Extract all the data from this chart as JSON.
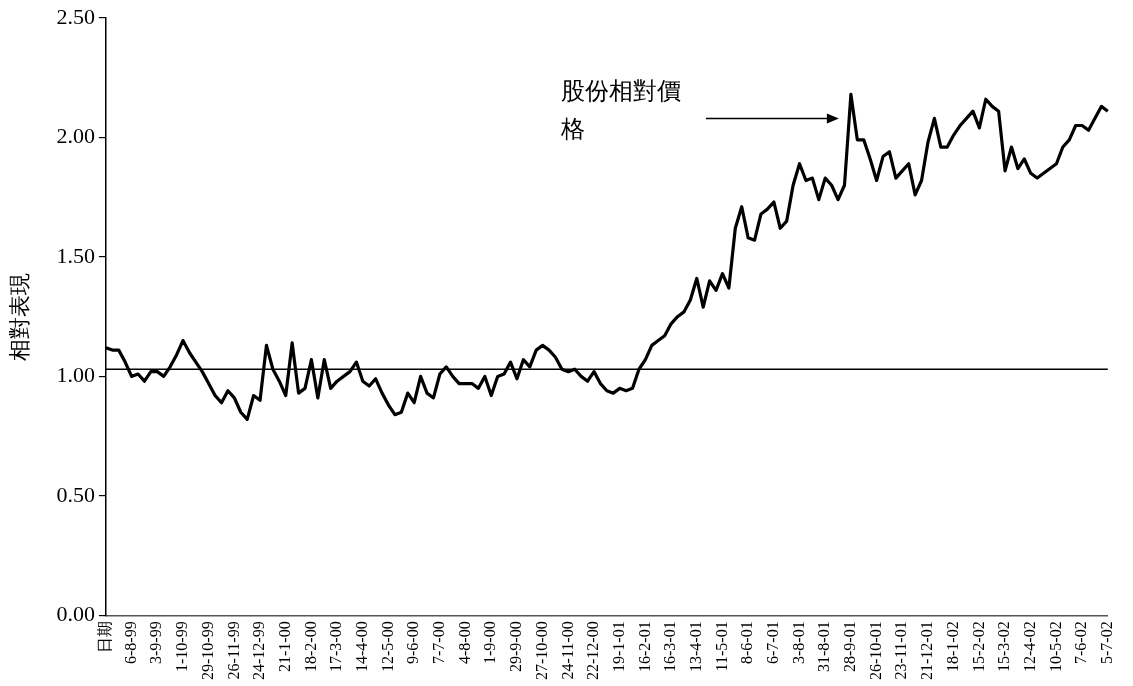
{
  "chart_data": {
    "type": "line",
    "ylabel": "相對表現",
    "categories": [
      "日期",
      null,
      null,
      null,
      "6-8-99",
      null,
      null,
      null,
      "3-9-99",
      null,
      null,
      null,
      "1-10-99",
      null,
      null,
      null,
      "29-10-99",
      null,
      null,
      null,
      "26-11-99",
      null,
      null,
      null,
      "24-12-99",
      null,
      null,
      null,
      "21-1-00",
      null,
      null,
      null,
      "18-2-00",
      null,
      null,
      null,
      "17-3-00",
      null,
      null,
      null,
      "14-4-00",
      null,
      null,
      null,
      "12-5-00",
      null,
      null,
      null,
      "9-6-00",
      null,
      null,
      null,
      "7-7-00",
      null,
      null,
      null,
      "4-8-00",
      null,
      null,
      null,
      "1-9-00",
      null,
      null,
      null,
      "29-9-00",
      null,
      null,
      null,
      "27-10-00",
      null,
      null,
      null,
      "24-11-00",
      null,
      null,
      null,
      "22-12-00",
      null,
      null,
      null,
      "19-1-01",
      null,
      null,
      null,
      "16-2-01",
      null,
      null,
      null,
      "16-3-01",
      null,
      null,
      null,
      "13-4-01",
      null,
      null,
      null,
      "11-5-01",
      null,
      null,
      null,
      "8-6-01",
      null,
      null,
      null,
      "6-7-01",
      null,
      null,
      null,
      "3-8-01",
      null,
      null,
      null,
      "31-8-01",
      null,
      null,
      null,
      "28-9-01",
      null,
      null,
      null,
      "26-10-01",
      null,
      null,
      null,
      "23-11-01",
      null,
      null,
      null,
      "21-12-01",
      null,
      null,
      null,
      "18-1-02",
      null,
      null,
      null,
      "15-2-02",
      null,
      null,
      null,
      "15-3-02",
      null,
      null,
      null,
      "12-4-02",
      null,
      null,
      null,
      "10-5-02",
      null,
      null,
      null,
      "7-6-02",
      null,
      null,
      null,
      "5-7-02"
    ],
    "series": [
      {
        "name": "股份相對價格",
        "color": "#000000",
        "values": [
          1.12,
          1.11,
          1.11,
          1.06,
          1.0,
          1.01,
          0.98,
          1.02,
          1.02,
          1.0,
          1.04,
          1.09,
          1.15,
          1.1,
          1.06,
          1.02,
          0.97,
          0.92,
          0.89,
          0.94,
          0.91,
          0.85,
          0.82,
          0.92,
          0.9,
          1.13,
          1.03,
          0.98,
          0.92,
          1.14,
          0.93,
          0.95,
          1.07,
          0.91,
          1.07,
          0.95,
          0.98,
          1.0,
          1.02,
          1.06,
          0.98,
          0.96,
          0.99,
          0.93,
          0.88,
          0.84,
          0.85,
          0.93,
          0.89,
          1.0,
          0.93,
          0.91,
          1.01,
          1.04,
          1.0,
          0.97,
          0.97,
          0.97,
          0.95,
          1.0,
          0.92,
          1.0,
          1.01,
          1.06,
          0.99,
          1.07,
          1.04,
          1.11,
          1.13,
          1.11,
          1.08,
          1.03,
          1.02,
          1.03,
          1.0,
          0.98,
          1.02,
          0.97,
          0.94,
          0.93,
          0.95,
          0.94,
          0.95,
          1.03,
          1.07,
          1.13,
          1.15,
          1.17,
          1.22,
          1.25,
          1.27,
          1.32,
          1.41,
          1.29,
          1.4,
          1.36,
          1.43,
          1.37,
          1.62,
          1.71,
          1.58,
          1.57,
          1.68,
          1.7,
          1.73,
          1.62,
          1.65,
          1.8,
          1.89,
          1.82,
          1.83,
          1.74,
          1.83,
          1.8,
          1.74,
          1.8,
          2.18,
          1.99,
          1.99,
          1.91,
          1.82,
          1.92,
          1.94,
          1.83,
          1.86,
          1.89,
          1.76,
          1.82,
          1.98,
          2.08,
          1.96,
          1.96,
          2.01,
          2.05,
          2.08,
          2.11,
          2.04,
          2.16,
          2.13,
          2.11,
          1.86,
          1.96,
          1.87,
          1.91,
          1.85,
          1.83,
          1.85,
          1.87,
          1.89,
          1.96,
          1.99,
          2.05,
          2.05,
          2.03,
          2.08,
          2.13,
          2.11
        ]
      }
    ],
    "ylim": [
      0,
      2.5
    ],
    "yticks": [
      {
        "value": 0,
        "label": "0.00"
      },
      {
        "value": 0.5,
        "label": "0.50"
      },
      {
        "value": 1,
        "label": "1.00"
      },
      {
        "value": 1.5,
        "label": "1.50"
      },
      {
        "value": 2,
        "label": "2.00"
      },
      {
        "value": 2.5,
        "label": "2.50"
      }
    ],
    "ref_lines": [
      {
        "axis": "y",
        "value": 1.03,
        "color": "#000000"
      }
    ],
    "grid": false,
    "legend": false,
    "marker": "none",
    "line_style": "solid"
  }
}
